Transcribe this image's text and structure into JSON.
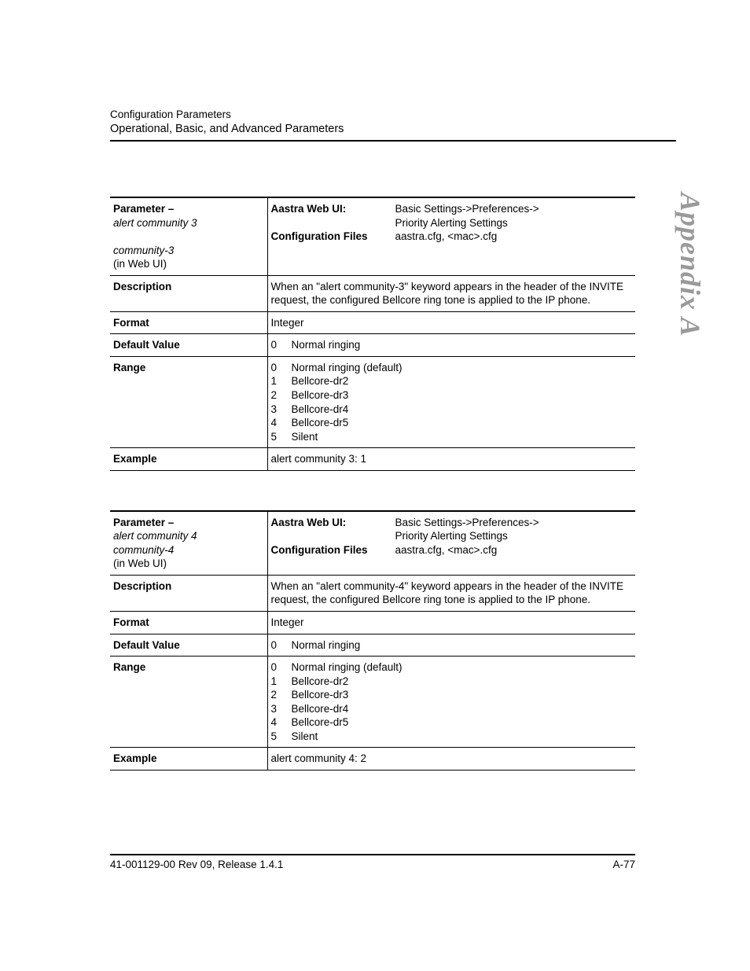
{
  "header": {
    "line1": "Configuration Parameters",
    "line2": "Operational, Basic, and Advanced Parameters"
  },
  "sideLabel": "Appendix A",
  "tables": [
    {
      "parameter": {
        "labelPrefix": "Parameter",
        "dash": " – ",
        "name": "alert community 3",
        "webName": "community-3",
        "webNote": "(in Web UI)"
      },
      "location": {
        "webUiLabel": "Aastra Web UI:",
        "webUiPath1": "Basic Settings->Preferences->",
        "webUiPath2": "Priority Alerting Settings",
        "cfgLabel": "Configuration Files",
        "cfgValue": "aastra.cfg, <mac>.cfg"
      },
      "description": {
        "label": "Description",
        "value": "When an \"alert community-3\" keyword appears in the header of the INVITE request, the configured Bellcore ring tone is applied to the IP phone."
      },
      "format": {
        "label": "Format",
        "value": "Integer"
      },
      "defaultValue": {
        "label": "Default Value",
        "num": "0",
        "text": "Normal ringing"
      },
      "range": {
        "label": "Range",
        "items": [
          {
            "n": "0",
            "t": "Normal ringing (default)"
          },
          {
            "n": "1",
            "t": "Bellcore-dr2"
          },
          {
            "n": "2",
            "t": "Bellcore-dr3"
          },
          {
            "n": "3",
            "t": "Bellcore-dr4"
          },
          {
            "n": "4",
            "t": "Bellcore-dr5"
          },
          {
            "n": "5",
            "t": "Silent"
          }
        ]
      },
      "example": {
        "label": "Example",
        "value": "alert community 3: 1"
      }
    },
    {
      "parameter": {
        "labelPrefix": "Parameter",
        "dash": " – ",
        "name": "alert community 4",
        "webName": "community-4",
        "webNote": "(in Web UI)"
      },
      "location": {
        "webUiLabel": "Aastra Web UI:",
        "webUiPath1": "Basic Settings->Preferences->",
        "webUiPath2": "Priority Alerting Settings",
        "cfgLabel": "Configuration Files",
        "cfgValue": "aastra.cfg, <mac>.cfg"
      },
      "description": {
        "label": "Description",
        "value": "When an \"alert community-4\" keyword appears in the header of the INVITE request, the configured Bellcore ring tone is applied to the IP phone."
      },
      "format": {
        "label": "Format",
        "value": "Integer"
      },
      "defaultValue": {
        "label": "Default Value",
        "num": "0",
        "text": "Normal ringing"
      },
      "range": {
        "label": "Range",
        "items": [
          {
            "n": "0",
            "t": "Normal ringing (default)"
          },
          {
            "n": "1",
            "t": "Bellcore-dr2"
          },
          {
            "n": "2",
            "t": "Bellcore-dr3"
          },
          {
            "n": "3",
            "t": "Bellcore-dr4"
          },
          {
            "n": "4",
            "t": "Bellcore-dr5"
          },
          {
            "n": "5",
            "t": "Silent"
          }
        ]
      },
      "example": {
        "label": "Example",
        "value": "alert community 4: 2"
      }
    }
  ],
  "footer": {
    "left": "41-001129-00 Rev 09, Release 1.4.1",
    "right": "A-77"
  }
}
